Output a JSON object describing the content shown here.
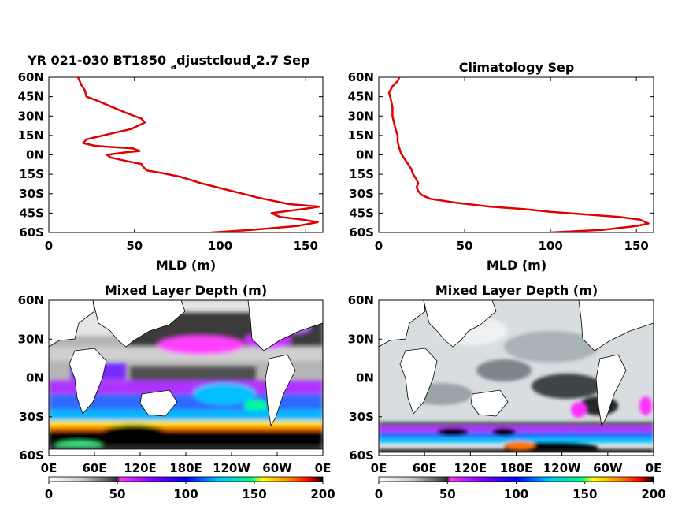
{
  "colors": {
    "profile_line": "#e00000",
    "frame": "#000000",
    "land": "#ffffff",
    "colormap": [
      "#ffffff",
      "#c8c8c8",
      "#5a5a5a",
      "#1e1e1e",
      "#ff33ff",
      "#8000ff",
      "#0000ff",
      "#00c8ff",
      "#00ff80",
      "#ffff00",
      "#ff8000",
      "#ff0000",
      "#000000"
    ]
  },
  "chart_data": [
    {
      "type": "line",
      "title_main": "YR 021-030 BT1850",
      "title_sub1": "a",
      "title_mid": "djustcloud",
      "title_sub2": "v",
      "title_end": "2.7 Sep",
      "xlabel": "MLD (m)",
      "ylabel": "",
      "xlim": [
        0,
        160
      ],
      "ylim": [
        -60,
        60
      ],
      "xticks": [
        "0",
        "50",
        "100",
        "150"
      ],
      "yticks": [
        "60N",
        "45N",
        "30N",
        "15N",
        "0N",
        "15S",
        "30S",
        "45S",
        "60S"
      ],
      "series": [
        {
          "x": [
            17,
            18,
            19,
            21,
            22,
            28,
            37,
            46,
            54,
            56,
            48,
            35,
            22,
            20,
            27,
            38,
            49,
            53,
            45,
            34,
            36,
            46,
            54,
            55,
            57,
            66,
            77,
            89,
            98,
            110,
            122,
            140,
            158,
            148,
            130,
            135,
            148,
            157,
            145,
            118,
            95
          ],
          "y": [
            60,
            57,
            54,
            50,
            45,
            42,
            37,
            32,
            28,
            25,
            20,
            16,
            12,
            9,
            7,
            6,
            5,
            3,
            2,
            0,
            -2,
            -5,
            -7,
            -9,
            -12,
            -14,
            -17,
            -22,
            -25,
            -29,
            -33,
            -38,
            -40,
            -42,
            -45,
            -48,
            -50,
            -52,
            -55,
            -58,
            -60
          ]
        }
      ]
    },
    {
      "type": "line",
      "title": "Climatology Sep",
      "xlabel": "MLD (m)",
      "ylabel": "",
      "xlim": [
        0,
        160
      ],
      "ylim": [
        -60,
        60
      ],
      "xticks": [
        "0",
        "50",
        "100",
        "150"
      ],
      "yticks": [
        "60N",
        "45N",
        "30N",
        "15N",
        "0N",
        "15S",
        "30S",
        "45S",
        "60S"
      ],
      "series": [
        {
          "x": [
            12,
            11,
            8,
            6,
            7,
            8,
            8,
            9,
            10,
            11,
            11,
            12,
            13,
            15,
            17,
            19,
            20,
            22,
            23,
            22,
            23,
            25,
            30,
            45,
            65,
            85,
            100,
            120,
            140,
            152,
            157,
            150,
            130,
            100
          ],
          "y": [
            60,
            57,
            53,
            48,
            43,
            37,
            30,
            24,
            19,
            15,
            10,
            5,
            1,
            -3,
            -7,
            -11,
            -15,
            -19,
            -22,
            -25,
            -28,
            -31,
            -34,
            -37,
            -40,
            -42,
            -44,
            -46,
            -48,
            -50,
            -53,
            -55,
            -58,
            -60
          ]
        }
      ]
    },
    {
      "type": "heatmap",
      "title": "Mixed Layer Depth (m)",
      "xticks": [
        "0E",
        "60E",
        "120E",
        "180E",
        "120W",
        "60W",
        "0E"
      ],
      "yticks": [
        "60N",
        "30N",
        "0N",
        "30S",
        "60S"
      ],
      "xlim": [
        0,
        360
      ],
      "ylim": [
        -60,
        60
      ],
      "colorbar_ticks": [
        "0",
        "50",
        "100",
        "150",
        "200"
      ],
      "clim": [
        0,
        200
      ]
    },
    {
      "type": "heatmap",
      "title": "Mixed Layer Depth (m)",
      "xticks": [
        "0E",
        "60E",
        "120E",
        "180E",
        "120W",
        "60W",
        "0E"
      ],
      "yticks": [
        "60N",
        "30N",
        "0N",
        "30S",
        "60S"
      ],
      "xlim": [
        0,
        360
      ],
      "ylim": [
        -60,
        60
      ],
      "colorbar_ticks": [
        "0",
        "50",
        "100",
        "150",
        "200"
      ],
      "clim": [
        0,
        200
      ]
    }
  ]
}
